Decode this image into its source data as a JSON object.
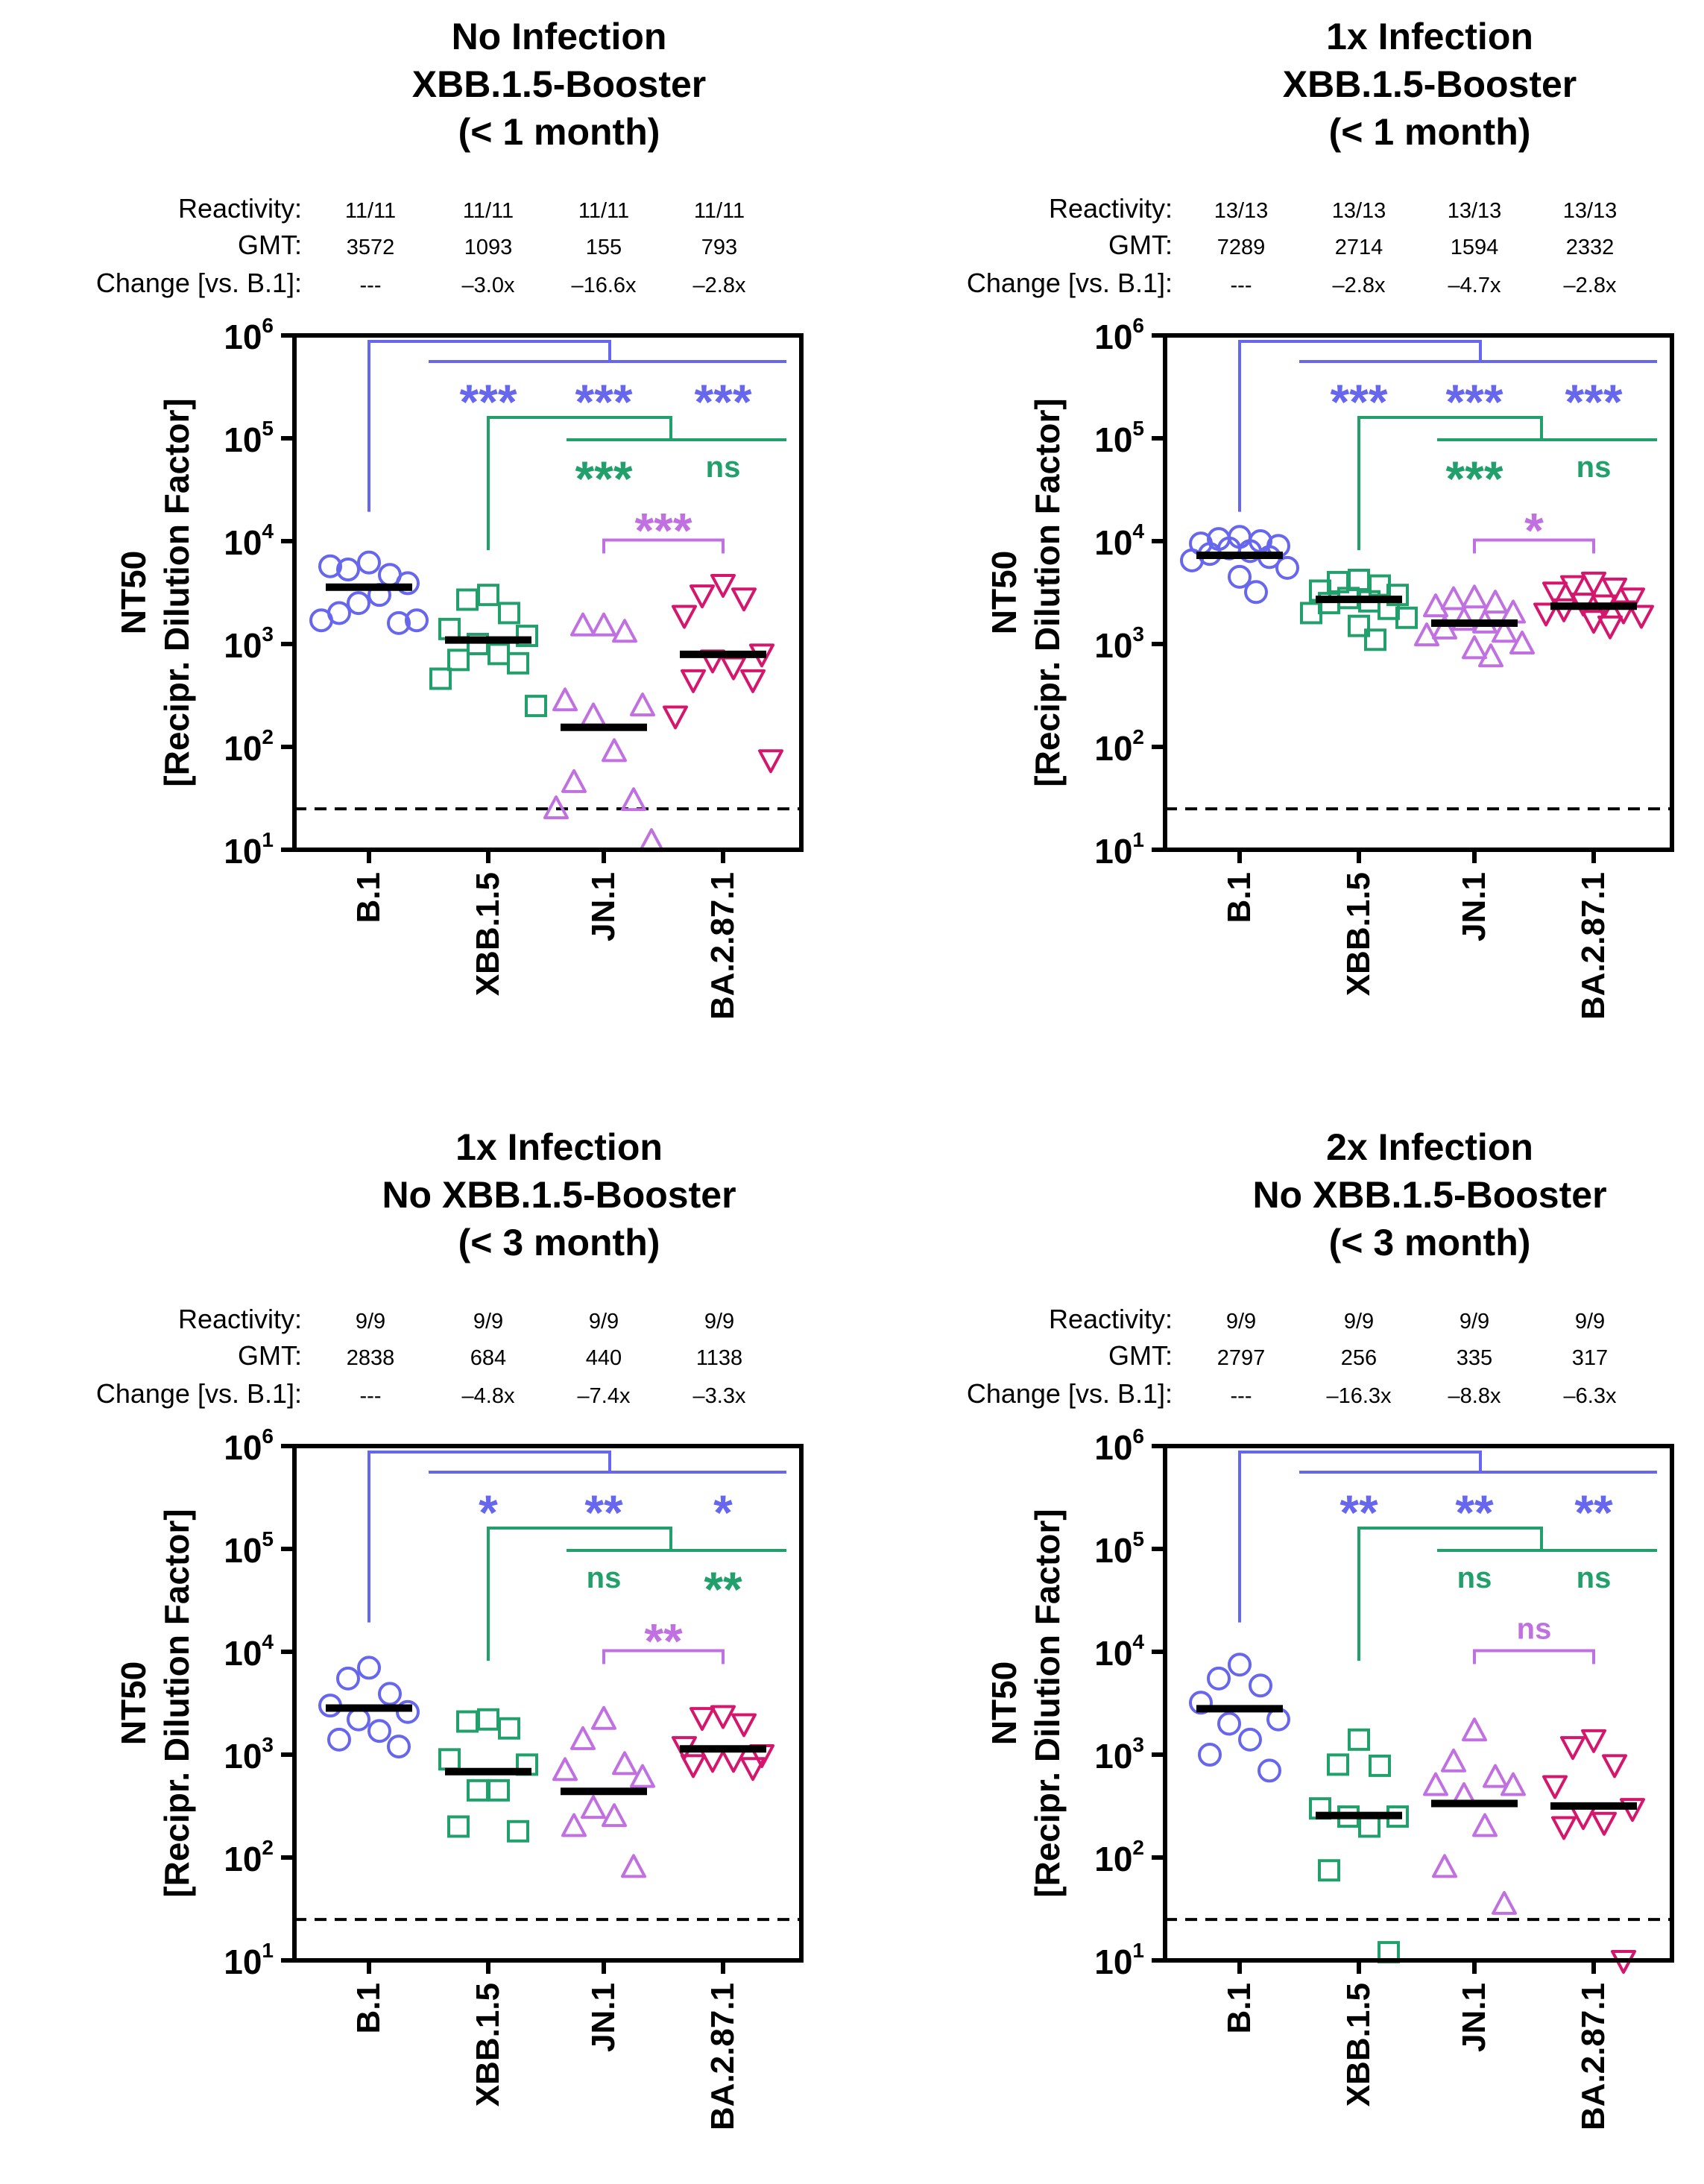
{
  "colors": {
    "B.1": "#6666ee",
    "XBB.1.5": "#22a06b",
    "JN.1": "#c070e0",
    "BA.2.87.1": "#d5166d",
    "axis": "#000000",
    "gmt_bar": "#000000"
  },
  "row_labels": {
    "reactivity": "Reactivity:",
    "gmt": "GMT:",
    "change": "Change [vs. B.1]:"
  },
  "chart_data": [
    {
      "type": "scatter",
      "title": [
        "No Infection",
        "XBB.1.5-Booster",
        "(< 1 month)"
      ],
      "categories": [
        "B.1",
        "XBB.1.5",
        "JN.1",
        "BA.2.87.1"
      ],
      "ylabel": [
        "NT50",
        "[Recipr. Dilution Factor]"
      ],
      "yscale": "log",
      "ylim": [
        10,
        1000000
      ],
      "lod": 25,
      "yticks": [
        {
          "base": "10",
          "exp": "1"
        },
        {
          "base": "10",
          "exp": "2"
        },
        {
          "base": "10",
          "exp": "3"
        },
        {
          "base": "10",
          "exp": "4"
        },
        {
          "base": "10",
          "exp": "5"
        },
        {
          "base": "10",
          "exp": "6"
        }
      ],
      "reactivity": [
        "11/11",
        "11/11",
        "11/11",
        "11/11"
      ],
      "gmt_text": [
        "3572",
        "1093",
        "155",
        "793"
      ],
      "change": [
        "---",
        "–3.0x",
        "–16.6x",
        "–2.8x"
      ],
      "gmt": [
        3572,
        1093,
        155,
        793
      ],
      "series": [
        {
          "name": "B.1",
          "marker": "circle",
          "values": [
            6200,
            5300,
            4700,
            5700,
            3900,
            2500,
            3000,
            2000,
            1600,
            1700,
            1700
          ]
        },
        {
          "name": "XBB.1.5",
          "marker": "square",
          "values": [
            3000,
            2700,
            2000,
            1400,
            1200,
            1000,
            800,
            700,
            650,
            460,
            250
          ]
        },
        {
          "name": "JN.1",
          "marker": "triangle-up",
          "values": [
            1500,
            1500,
            1300,
            280,
            250,
            200,
            90,
            45,
            30,
            25,
            12
          ]
        },
        {
          "name": "BA.2.87.1",
          "marker": "triangle-down",
          "values": [
            3800,
            3000,
            2800,
            1900,
            800,
            700,
            600,
            450,
            450,
            200,
            75
          ]
        }
      ],
      "significance": {
        "b1": {
          "color": "#6666ee",
          "from": 0,
          "to": [
            1,
            2,
            3
          ],
          "labels": [
            "***",
            "***",
            "***"
          ]
        },
        "xbb": {
          "color": "#22a06b",
          "from": 1,
          "to": [
            2,
            3
          ],
          "labels": [
            "***",
            "ns"
          ]
        },
        "jn1": {
          "color": "#c070e0",
          "from": 2,
          "to": [
            3
          ],
          "labels": [
            "***"
          ]
        }
      }
    },
    {
      "type": "scatter",
      "title": [
        "1x Infection",
        "XBB.1.5-Booster",
        "(< 1 month)"
      ],
      "categories": [
        "B.1",
        "XBB.1.5",
        "JN.1",
        "BA.2.87.1"
      ],
      "ylabel": [
        "NT50",
        "[Recipr. Dilution Factor]"
      ],
      "yscale": "log",
      "ylim": [
        10,
        1000000
      ],
      "lod": 25,
      "yticks": [
        {
          "base": "10",
          "exp": "1"
        },
        {
          "base": "10",
          "exp": "2"
        },
        {
          "base": "10",
          "exp": "3"
        },
        {
          "base": "10",
          "exp": "4"
        },
        {
          "base": "10",
          "exp": "5"
        },
        {
          "base": "10",
          "exp": "6"
        }
      ],
      "reactivity": [
        "13/13",
        "13/13",
        "13/13",
        "13/13"
      ],
      "gmt_text": [
        "7289",
        "2714",
        "1594",
        "2332"
      ],
      "change": [
        "---",
        "–2.8x",
        "–4.7x",
        "–2.8x"
      ],
      "gmt": [
        7289,
        2714,
        1594,
        2332
      ],
      "series": [
        {
          "name": "B.1",
          "marker": "circle",
          "values": [
            11000,
            10500,
            10000,
            9500,
            9000,
            8500,
            8000,
            7500,
            7000,
            6500,
            5500,
            4500,
            3200
          ]
        },
        {
          "name": "XBB.1.5",
          "marker": "square",
          "values": [
            4200,
            4000,
            3700,
            3300,
            3000,
            2800,
            2600,
            2500,
            2200,
            2000,
            1800,
            1500,
            1100
          ]
        },
        {
          "name": "JN.1",
          "marker": "triangle-up",
          "values": [
            2800,
            2700,
            2500,
            2300,
            2000,
            1700,
            1600,
            1400,
            1300,
            1200,
            1000,
            900,
            750
          ]
        },
        {
          "name": "BA.2.87.1",
          "marker": "triangle-down",
          "values": [
            4000,
            3700,
            3500,
            3200,
            2800,
            2500,
            2400,
            2200,
            2100,
            2000,
            1900,
            1700,
            1500
          ]
        }
      ],
      "significance": {
        "b1": {
          "color": "#6666ee",
          "from": 0,
          "to": [
            1,
            2,
            3
          ],
          "labels": [
            "***",
            "***",
            "***"
          ]
        },
        "xbb": {
          "color": "#22a06b",
          "from": 1,
          "to": [
            2,
            3
          ],
          "labels": [
            "***",
            "ns"
          ]
        },
        "jn1": {
          "color": "#c070e0",
          "from": 2,
          "to": [
            3
          ],
          "labels": [
            "*"
          ]
        }
      }
    },
    {
      "type": "scatter",
      "title": [
        "1x Infection",
        "No XBB.1.5-Booster",
        "(< 3 month)"
      ],
      "categories": [
        "B.1",
        "XBB.1.5",
        "JN.1",
        "BA.2.87.1"
      ],
      "ylabel": [
        "NT50",
        "[Recipr. Dilution Factor]"
      ],
      "yscale": "log",
      "ylim": [
        10,
        1000000
      ],
      "lod": 25,
      "yticks": [
        {
          "base": "10",
          "exp": "1"
        },
        {
          "base": "10",
          "exp": "2"
        },
        {
          "base": "10",
          "exp": "3"
        },
        {
          "base": "10",
          "exp": "4"
        },
        {
          "base": "10",
          "exp": "5"
        },
        {
          "base": "10",
          "exp": "6"
        }
      ],
      "reactivity": [
        "9/9",
        "9/9",
        "9/9",
        "9/9"
      ],
      "gmt_text": [
        "2838",
        "684",
        "440",
        "1138"
      ],
      "change": [
        "---",
        "–4.8x",
        "–7.4x",
        "–3.3x"
      ],
      "gmt": [
        2838,
        684,
        440,
        1138
      ],
      "series": [
        {
          "name": "B.1",
          "marker": "circle",
          "values": [
            7000,
            5500,
            3900,
            3000,
            2600,
            2200,
            1700,
            1400,
            1200
          ]
        },
        {
          "name": "XBB.1.5",
          "marker": "square",
          "values": [
            2200,
            2100,
            1800,
            900,
            800,
            450,
            450,
            200,
            180
          ]
        },
        {
          "name": "JN.1",
          "marker": "triangle-up",
          "values": [
            2200,
            1400,
            800,
            700,
            600,
            300,
            250,
            200,
            80
          ]
        },
        {
          "name": "BA.2.87.1",
          "marker": "triangle-down",
          "values": [
            2400,
            2300,
            2000,
            1200,
            1000,
            900,
            900,
            800,
            750
          ]
        }
      ],
      "significance": {
        "b1": {
          "color": "#6666ee",
          "from": 0,
          "to": [
            1,
            2,
            3
          ],
          "labels": [
            "*",
            "**",
            "*"
          ]
        },
        "xbb": {
          "color": "#22a06b",
          "from": 1,
          "to": [
            2,
            3
          ],
          "labels": [
            "ns",
            "**"
          ]
        },
        "jn1": {
          "color": "#c070e0",
          "from": 2,
          "to": [
            3
          ],
          "labels": [
            "**"
          ]
        }
      }
    },
    {
      "type": "scatter",
      "title": [
        "2x Infection",
        "No XBB.1.5-Booster",
        "(< 3 month)"
      ],
      "categories": [
        "B.1",
        "XBB.1.5",
        "JN.1",
        "BA.2.87.1"
      ],
      "ylabel": [
        "NT50",
        "[Recipr. Dilution Factor]"
      ],
      "yscale": "log",
      "ylim": [
        10,
        1000000
      ],
      "lod": 25,
      "yticks": [
        {
          "base": "10",
          "exp": "1"
        },
        {
          "base": "10",
          "exp": "2"
        },
        {
          "base": "10",
          "exp": "3"
        },
        {
          "base": "10",
          "exp": "4"
        },
        {
          "base": "10",
          "exp": "5"
        },
        {
          "base": "10",
          "exp": "6"
        }
      ],
      "reactivity": [
        "9/9",
        "9/9",
        "9/9",
        "9/9"
      ],
      "gmt_text": [
        "2797",
        "256",
        "335",
        "317"
      ],
      "change": [
        "---",
        "–16.3x",
        "–8.8x",
        "–6.3x"
      ],
      "gmt": [
        2797,
        256,
        335,
        317
      ],
      "series": [
        {
          "name": "B.1",
          "marker": "circle",
          "values": [
            7500,
            5500,
            4700,
            3200,
            2200,
            2000,
            1400,
            1000,
            700
          ]
        },
        {
          "name": "XBB.1.5",
          "marker": "square",
          "values": [
            1400,
            800,
            780,
            300,
            250,
            250,
            200,
            75,
            12
          ]
        },
        {
          "name": "JN.1",
          "marker": "triangle-up",
          "values": [
            1700,
            850,
            600,
            500,
            500,
            400,
            200,
            80,
            35
          ]
        },
        {
          "name": "BA.2.87.1",
          "marker": "triangle-down",
          "values": [
            1400,
            1200,
            800,
            500,
            300,
            250,
            220,
            200,
            10
          ]
        }
      ],
      "significance": {
        "b1": {
          "color": "#6666ee",
          "from": 0,
          "to": [
            1,
            2,
            3
          ],
          "labels": [
            "**",
            "**",
            "**"
          ]
        },
        "xbb": {
          "color": "#22a06b",
          "from": 1,
          "to": [
            2,
            3
          ],
          "labels": [
            "ns",
            "ns"
          ]
        },
        "jn1": {
          "color": "#c070e0",
          "from": 2,
          "to": [
            3
          ],
          "labels": [
            "ns"
          ]
        }
      }
    }
  ]
}
